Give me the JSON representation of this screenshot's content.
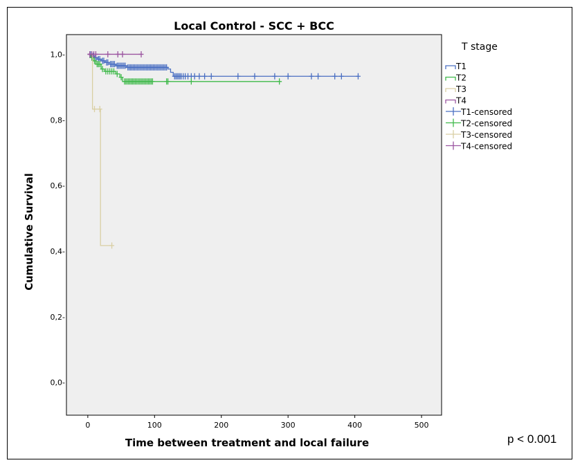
{
  "chart_data": {
    "type": "line",
    "title": "Local Control - SCC + BCC",
    "xlabel": "Time between treatment and local failure",
    "ylabel": "Cumulative Survival",
    "xlim": [
      -32,
      530
    ],
    "ylim": [
      -0.1,
      1.06
    ],
    "xticks": [
      0,
      100,
      200,
      300,
      400,
      500
    ],
    "xtick_labels": [
      "0",
      "100",
      "200",
      "300",
      "400",
      "500"
    ],
    "yticks": [
      0.0,
      0.2,
      0.4,
      0.6,
      0.8,
      1.0
    ],
    "ytick_labels": [
      "0,0-",
      "0,2-",
      "0,4-",
      "0,6-",
      "0,8-",
      "1,0-"
    ],
    "grid": false,
    "legend_title": "T stage",
    "legend_position": "right",
    "legend_entries": [
      "T1",
      "T2",
      "T3",
      "T4",
      "T1-censored",
      "T2-censored",
      "T3-censored",
      "T4-censored"
    ],
    "annotation": "p < 0.001",
    "series": [
      {
        "name": "T1",
        "color": "#4a6fc2",
        "steps": [
          [
            0,
            1.0
          ],
          [
            6,
            0.995
          ],
          [
            10,
            0.99
          ],
          [
            14,
            0.985
          ],
          [
            20,
            0.98
          ],
          [
            26,
            0.975
          ],
          [
            32,
            0.97
          ],
          [
            42,
            0.965
          ],
          [
            58,
            0.96
          ],
          [
            120,
            0.955
          ],
          [
            124,
            0.945
          ],
          [
            128,
            0.933
          ],
          [
            405,
            0.933
          ]
        ],
        "censored": [
          [
            4,
            1.0
          ],
          [
            8,
            0.995
          ],
          [
            12,
            0.99
          ],
          [
            16,
            0.985
          ],
          [
            18,
            0.985
          ],
          [
            22,
            0.98
          ],
          [
            24,
            0.98
          ],
          [
            28,
            0.975
          ],
          [
            30,
            0.975
          ],
          [
            34,
            0.97
          ],
          [
            36,
            0.97
          ],
          [
            38,
            0.97
          ],
          [
            40,
            0.97
          ],
          [
            44,
            0.965
          ],
          [
            46,
            0.965
          ],
          [
            48,
            0.965
          ],
          [
            50,
            0.965
          ],
          [
            52,
            0.965
          ],
          [
            54,
            0.965
          ],
          [
            56,
            0.965
          ],
          [
            60,
            0.96
          ],
          [
            62,
            0.96
          ],
          [
            64,
            0.96
          ],
          [
            66,
            0.96
          ],
          [
            68,
            0.96
          ],
          [
            70,
            0.96
          ],
          [
            72,
            0.96
          ],
          [
            74,
            0.96
          ],
          [
            76,
            0.96
          ],
          [
            78,
            0.96
          ],
          [
            80,
            0.96
          ],
          [
            82,
            0.96
          ],
          [
            84,
            0.96
          ],
          [
            86,
            0.96
          ],
          [
            88,
            0.96
          ],
          [
            90,
            0.96
          ],
          [
            92,
            0.96
          ],
          [
            94,
            0.96
          ],
          [
            96,
            0.96
          ],
          [
            98,
            0.96
          ],
          [
            100,
            0.96
          ],
          [
            102,
            0.96
          ],
          [
            104,
            0.96
          ],
          [
            106,
            0.96
          ],
          [
            108,
            0.96
          ],
          [
            110,
            0.96
          ],
          [
            112,
            0.96
          ],
          [
            114,
            0.96
          ],
          [
            116,
            0.96
          ],
          [
            118,
            0.96
          ],
          [
            130,
            0.933
          ],
          [
            132,
            0.933
          ],
          [
            134,
            0.933
          ],
          [
            136,
            0.933
          ],
          [
            138,
            0.933
          ],
          [
            140,
            0.933
          ],
          [
            143,
            0.933
          ],
          [
            146,
            0.933
          ],
          [
            150,
            0.933
          ],
          [
            155,
            0.933
          ],
          [
            160,
            0.933
          ],
          [
            167,
            0.933
          ],
          [
            175,
            0.933
          ],
          [
            185,
            0.933
          ],
          [
            225,
            0.933
          ],
          [
            250,
            0.933
          ],
          [
            280,
            0.933
          ],
          [
            300,
            0.933
          ],
          [
            335,
            0.933
          ],
          [
            345,
            0.933
          ],
          [
            370,
            0.933
          ],
          [
            380,
            0.933
          ],
          [
            405,
            0.933
          ]
        ]
      },
      {
        "name": "T2",
        "color": "#3fb94a",
        "steps": [
          [
            0,
            1.0
          ],
          [
            5,
            0.99
          ],
          [
            8,
            0.98
          ],
          [
            12,
            0.97
          ],
          [
            20,
            0.955
          ],
          [
            25,
            0.948
          ],
          [
            42,
            0.94
          ],
          [
            48,
            0.93
          ],
          [
            52,
            0.917
          ],
          [
            287,
            0.917
          ]
        ],
        "censored": [
          [
            6,
            0.99
          ],
          [
            10,
            0.98
          ],
          [
            14,
            0.97
          ],
          [
            16,
            0.97
          ],
          [
            18,
            0.97
          ],
          [
            22,
            0.955
          ],
          [
            27,
            0.948
          ],
          [
            30,
            0.948
          ],
          [
            33,
            0.948
          ],
          [
            36,
            0.948
          ],
          [
            39,
            0.948
          ],
          [
            44,
            0.94
          ],
          [
            50,
            0.93
          ],
          [
            55,
            0.917
          ],
          [
            57,
            0.917
          ],
          [
            59,
            0.917
          ],
          [
            61,
            0.917
          ],
          [
            63,
            0.917
          ],
          [
            65,
            0.917
          ],
          [
            67,
            0.917
          ],
          [
            69,
            0.917
          ],
          [
            71,
            0.917
          ],
          [
            73,
            0.917
          ],
          [
            75,
            0.917
          ],
          [
            77,
            0.917
          ],
          [
            79,
            0.917
          ],
          [
            81,
            0.917
          ],
          [
            83,
            0.917
          ],
          [
            85,
            0.917
          ],
          [
            87,
            0.917
          ],
          [
            89,
            0.917
          ],
          [
            91,
            0.917
          ],
          [
            93,
            0.917
          ],
          [
            95,
            0.917
          ],
          [
            97,
            0.917
          ],
          [
            118,
            0.917
          ],
          [
            120,
            0.917
          ],
          [
            155,
            0.917
          ],
          [
            287,
            0.917
          ]
        ]
      },
      {
        "name": "T3",
        "color": "#d9cfa3",
        "steps": [
          [
            0,
            1.0
          ],
          [
            6,
            1.0
          ],
          [
            7,
            0.833
          ],
          [
            18,
            0.833
          ],
          [
            19,
            0.417
          ],
          [
            36,
            0.417
          ]
        ],
        "censored": [
          [
            10,
            0.833
          ],
          [
            18,
            0.833
          ],
          [
            36,
            0.417
          ]
        ]
      },
      {
        "name": "T4",
        "color": "#9b55a0",
        "steps": [
          [
            0,
            1.0
          ],
          [
            80,
            1.0
          ]
        ],
        "censored": [
          [
            3,
            1.0
          ],
          [
            6,
            1.0
          ],
          [
            9,
            1.0
          ],
          [
            12,
            1.0
          ],
          [
            30,
            1.0
          ],
          [
            45,
            1.0
          ],
          [
            52,
            1.0
          ],
          [
            80,
            1.0
          ]
        ]
      }
    ]
  }
}
